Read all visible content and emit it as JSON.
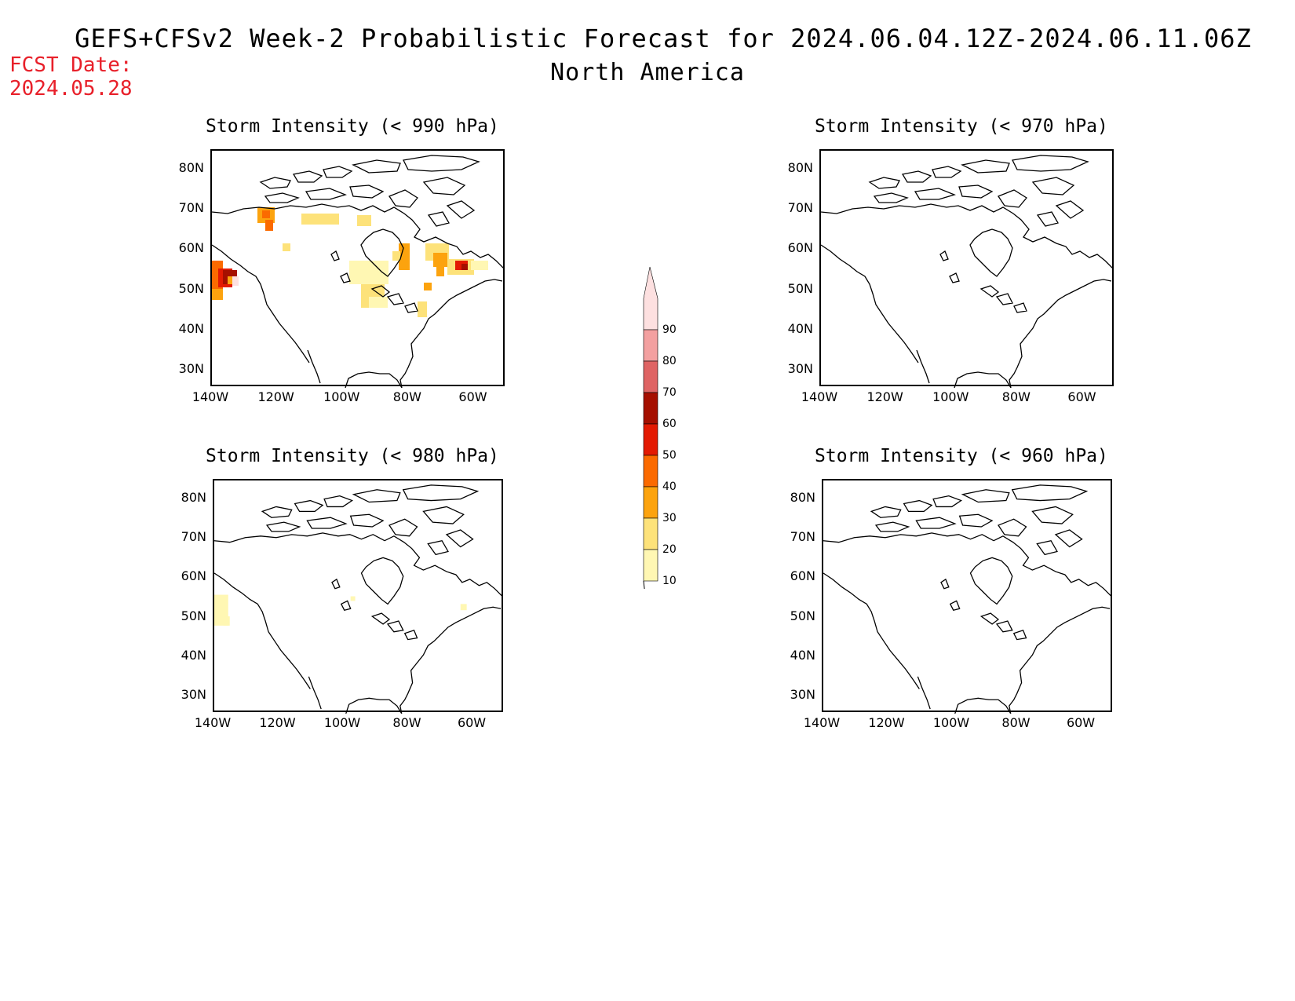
{
  "header": {
    "title": "GEFS+CFSv2 Week-2 Probabilistic Forecast for 2024.06.04.12Z-2024.06.11.06Z",
    "subtitle": "North America",
    "fcst_label": "FCST Date:",
    "fcst_date": "2024.05.28"
  },
  "axes": {
    "lat_labels": [
      "80N",
      "70N",
      "60N",
      "50N",
      "40N",
      "30N"
    ],
    "lon_labels": [
      "140W",
      "120W",
      "100W",
      "80W",
      "60W"
    ]
  },
  "panels": [
    {
      "id": "p990",
      "title": "Storm Intensity (< 990 hPa)",
      "signal": "strong"
    },
    {
      "id": "p970",
      "title": "Storm Intensity (< 970 hPa)",
      "signal": "none"
    },
    {
      "id": "p980",
      "title": "Storm Intensity (< 980 hPa)",
      "signal": "weak"
    },
    {
      "id": "p960",
      "title": "Storm Intensity (< 960 hPa)",
      "signal": "none"
    }
  ],
  "legend": {
    "levels": [
      "10",
      "20",
      "30",
      "40",
      "50",
      "60",
      "70",
      "80",
      "90"
    ],
    "colors": [
      "#fff7b3",
      "#fde27a",
      "#fca30e",
      "#fb6a00",
      "#e31a02",
      "#a50f00",
      "#df6464",
      "#f3a0a0",
      "#fde0e0"
    ]
  }
}
